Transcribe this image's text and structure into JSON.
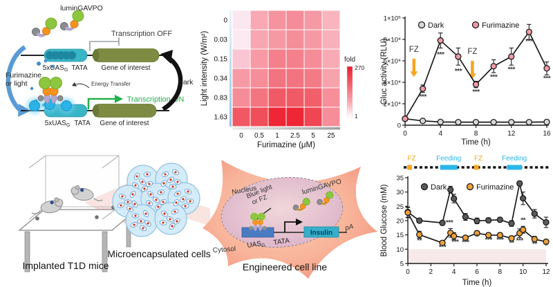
{
  "circuit": {
    "protein_label": "luminGAVPO",
    "transcription_off": "Transcription OFF",
    "transcription_on": "Transcription ON",
    "energy_transfer": "Energy Transfer",
    "uas_label": "5xUAS",
    "uas_sub": "G",
    "tata_label": "TATA",
    "gene_label": "Gene of interest",
    "trigger_line1": "Furimazine",
    "trigger_line2": "or light",
    "dark_label": "dark"
  },
  "invivo": {
    "mice_label": "Implanted T1D mice",
    "capsules_label": "Microencapsulated cells",
    "cell_label": "Engineered cell line",
    "nucleus_label": "Nucleus",
    "cytosol_label": "Cytosol",
    "light_line1": "Blue light",
    "light_line2": "or FZ",
    "protein_label": "luminGAVPO",
    "uas_label": "UAS",
    "uas_sub": "G",
    "tata_label": "TATA",
    "insulin_label": "Insulin",
    "pa_label": "pA"
  },
  "chart_data": [
    {
      "type": "heatmap",
      "name": "fold-induction-heatmap",
      "xlabel": "Furimazine (μM)",
      "ylabel": "Light intensity (W/m²)",
      "x_categories": [
        "0",
        "0.5",
        "1",
        "2.5",
        "5",
        "25"
      ],
      "y_categories": [
        "0",
        "0.03",
        "0.15",
        "0.34",
        "0.83",
        "1.63"
      ],
      "colorbar": {
        "label": "fold",
        "max_label": "270",
        "min_label": "1",
        "max_color": "#ec1c2c",
        "min_color": "#ffffff"
      },
      "fold_values": [
        [
          1,
          55,
          75,
          80,
          70,
          40
        ],
        [
          2,
          60,
          75,
          80,
          70,
          45
        ],
        [
          20,
          70,
          105,
          105,
          90,
          50
        ],
        [
          70,
          90,
          130,
          130,
          125,
          60
        ],
        [
          85,
          125,
          165,
          165,
          160,
          85
        ],
        [
          145,
          155,
          270,
          265,
          180,
          90
        ]
      ],
      "cell_colors": [
        [
          "#fbe7f0",
          "#f8a9b4",
          "#f5949f",
          "#f48d99",
          "#f59aa5",
          "#f9b4bd"
        ],
        [
          "#fceaf2",
          "#f8a6b1",
          "#f59aa4",
          "#f48f9a",
          "#f59aa4",
          "#f8b0ba"
        ],
        [
          "#fac6d4",
          "#f79aa6",
          "#f3808c",
          "#f3808c",
          "#f48d98",
          "#f8abb5"
        ],
        [
          "#f69aa5",
          "#f58e99",
          "#f27480",
          "#f27480",
          "#f27b86",
          "#f7a3ad"
        ],
        [
          "#f58d98",
          "#f3757f",
          "#f05a66",
          "#f05a66",
          "#f15f6b",
          "#f68f9a"
        ],
        [
          "#f15864",
          "#f14e5b",
          "#ee2635",
          "#ee2635",
          "#f04553",
          "#f68d98"
        ]
      ]
    },
    {
      "type": "line",
      "name": "gluc-activity-chart",
      "xlabel": "Time (h)",
      "ylabel": "Gluc activity (RLU)",
      "xlim": [
        0,
        16
      ],
      "ylim": [
        0,
        100000
      ],
      "x_ticks": [
        0,
        4,
        8,
        12,
        16
      ],
      "y_ticks": [
        {
          "v": 0,
          "label": "0"
        },
        {
          "v": 20000,
          "label": "2×10⁴"
        },
        {
          "v": 40000,
          "label": "4×10⁴"
        },
        {
          "v": 60000,
          "label": "6×10⁴"
        },
        {
          "v": 80000,
          "label": "8×10⁴"
        },
        {
          "v": 100000,
          "label": "1×10⁵"
        }
      ],
      "legend_position": "top",
      "series": [
        {
          "name": "Dark",
          "marker_color": "#d9d9d9",
          "line_color": "#1a1a1a",
          "x": [
            0,
            2,
            4,
            6,
            8,
            10,
            12,
            14,
            16
          ],
          "y": [
            6000,
            4000,
            3000,
            2800,
            2800,
            2800,
            2800,
            2800,
            3000
          ],
          "err": [
            1500,
            900,
            0,
            0,
            0,
            0,
            0,
            0,
            0
          ]
        },
        {
          "name": "Furimazine",
          "marker_color": "#ef9aa5",
          "line_color": "#1a1a1a",
          "x": [
            0,
            2,
            4,
            6,
            8,
            10,
            12,
            14,
            16
          ],
          "y": [
            6000,
            34000,
            79000,
            64000,
            38000,
            55000,
            64000,
            87000,
            53000
          ],
          "err": [
            1500,
            3500,
            7000,
            8000,
            3000,
            6000,
            8000,
            7000,
            6000
          ]
        }
      ],
      "arrows": [
        {
          "x": 1.0,
          "y_from": 62000,
          "y_to": 45000,
          "label": "FZ",
          "label_y": 68500
        },
        {
          "x": 7.6,
          "y_from": 60000,
          "y_to": 43000,
          "label": "FZ",
          "label_y": 66500
        }
      ],
      "stars": [
        {
          "x": 2,
          "y": 24500,
          "text": "***"
        },
        {
          "x": 4,
          "y": 64000,
          "text": "***"
        },
        {
          "x": 6,
          "y": 48500,
          "text": "***"
        },
        {
          "x": 8,
          "y": 29000,
          "text": "***"
        },
        {
          "x": 10,
          "y": 43000,
          "text": "***"
        },
        {
          "x": 12,
          "y": 50000,
          "text": "***"
        },
        {
          "x": 14,
          "y": 76000,
          "text": "***"
        },
        {
          "x": 16,
          "y": 41500,
          "text": "***"
        }
      ]
    },
    {
      "type": "line",
      "name": "blood-glucose-chart",
      "xlabel": "Time (h)",
      "ylabel": "Blood Glucose (mM)",
      "xlim": [
        0,
        12
      ],
      "ylim": [
        5,
        35
      ],
      "x_ticks": [
        0,
        2,
        4,
        6,
        8,
        10,
        12
      ],
      "y_ticks": [
        {
          "v": 5,
          "label": "5"
        },
        {
          "v": 10,
          "label": "10"
        },
        {
          "v": 15,
          "label": "15"
        },
        {
          "v": 20,
          "label": "20"
        },
        {
          "v": 25,
          "label": "25"
        },
        {
          "v": 30,
          "label": "30"
        },
        {
          "v": 35,
          "label": "35"
        }
      ],
      "band": {
        "from": 5,
        "to": 10,
        "color": "#f7e9e9"
      },
      "timeline": {
        "fz_color": "#f5a623",
        "feeding_color": "#29b6e8",
        "entries": [
          {
            "type": "fz",
            "x": 0.15,
            "label": "FZ"
          },
          {
            "type": "feeding",
            "x_from": 2.8,
            "x_to": 4.3,
            "label": "Feeding"
          },
          {
            "type": "fz",
            "x": 5.95,
            "label": "FZ"
          },
          {
            "type": "feeding",
            "x_from": 8.6,
            "x_to": 9.9,
            "label": "Feeding"
          }
        ]
      },
      "legend_position": "top",
      "series": [
        {
          "name": "Dark",
          "marker_color": "#5a5a5a",
          "line_color": "#1a1a1a",
          "x": [
            0,
            1,
            3,
            3.7,
            4,
            5,
            6,
            7,
            8,
            9,
            9.7,
            10,
            11,
            12
          ],
          "y": [
            23,
            20,
            19.2,
            30.8,
            27.7,
            21.3,
            19.9,
            20.1,
            20.3,
            19,
            33,
            27.8,
            22.4,
            19.4
          ],
          "err": [
            1.8,
            0.8,
            0.8,
            1.2,
            1.5,
            1.2,
            1.0,
            0.8,
            0.8,
            1.0,
            0.8,
            2.2,
            1.5,
            1.8
          ]
        },
        {
          "name": "Furimazine",
          "marker_color": "#f0a13a",
          "line_color": "#1a1a1a",
          "x": [
            0,
            1,
            3,
            3.7,
            4,
            5,
            6,
            7,
            8,
            9,
            9.7,
            10,
            11,
            12
          ],
          "y": [
            22.8,
            15.1,
            12.2,
            15.7,
            14.6,
            14,
            15.6,
            14.9,
            14.9,
            13.8,
            15.6,
            16.8,
            13.5,
            12.6
          ],
          "err": [
            1.8,
            1.2,
            0.8,
            1.5,
            1.2,
            0.8,
            0.8,
            0.8,
            0.8,
            0.8,
            1.5,
            1.2,
            1.0,
            0.8
          ]
        }
      ],
      "stars": [
        {
          "x": 1,
          "y": 12.3,
          "text": "**"
        },
        {
          "x": 3,
          "y": 9.9,
          "text": "***"
        },
        {
          "x": 3.6,
          "y": 18.6,
          "text": "***"
        },
        {
          "x": 4.1,
          "y": 11.8,
          "text": "***"
        },
        {
          "x": 5,
          "y": 11.7,
          "text": "***"
        },
        {
          "x": 6,
          "y": 13.6,
          "text": "*"
        },
        {
          "x": 7,
          "y": 12.5,
          "text": "***"
        },
        {
          "x": 8,
          "y": 12.5,
          "text": "***"
        },
        {
          "x": 9,
          "y": 11.4,
          "text": "**"
        },
        {
          "x": 9.7,
          "y": 12.3,
          "text": "***"
        },
        {
          "x": 10,
          "y": 19.4,
          "text": "**"
        },
        {
          "x": 11,
          "y": 11.1,
          "text": "**"
        },
        {
          "x": 12,
          "y": 10.4,
          "text": "*"
        }
      ]
    }
  ]
}
